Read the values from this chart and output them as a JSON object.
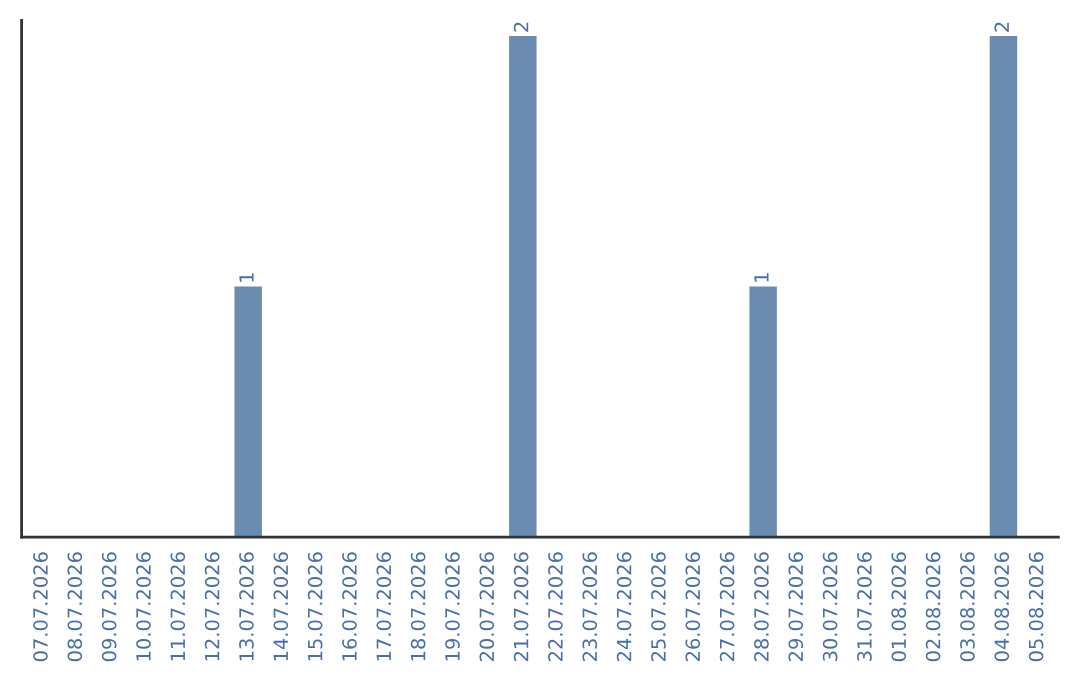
{
  "chart_data": {
    "type": "bar",
    "categories": [
      "07.07.2026",
      "08.07.2026",
      "09.07.2026",
      "10.07.2026",
      "11.07.2026",
      "12.07.2026",
      "13.07.2026",
      "14.07.2026",
      "15.07.2026",
      "16.07.2026",
      "17.07.2026",
      "18.07.2026",
      "19.07.2026",
      "20.07.2026",
      "21.07.2026",
      "22.07.2026",
      "23.07.2026",
      "24.07.2026",
      "25.07.2026",
      "26.07.2026",
      "27.07.2026",
      "28.07.2026",
      "29.07.2026",
      "30.07.2026",
      "31.07.2026",
      "01.08.2026",
      "02.08.2026",
      "03.08.2026",
      "04.08.2026",
      "05.08.2026"
    ],
    "values": [
      0,
      0,
      0,
      0,
      0,
      0,
      1,
      0,
      0,
      0,
      0,
      0,
      0,
      0,
      2,
      0,
      0,
      0,
      0,
      0,
      0,
      1,
      0,
      0,
      0,
      0,
      0,
      0,
      2,
      0
    ],
    "value_labels": [
      null,
      null,
      null,
      null,
      null,
      null,
      "1",
      null,
      null,
      null,
      null,
      null,
      null,
      null,
      "2",
      null,
      null,
      null,
      null,
      null,
      null,
      "1",
      null,
      null,
      null,
      null,
      null,
      null,
      "2",
      null
    ],
    "color": "#6b8cae",
    "tick_labels": "x",
    "grid": false,
    "legend": false
  }
}
